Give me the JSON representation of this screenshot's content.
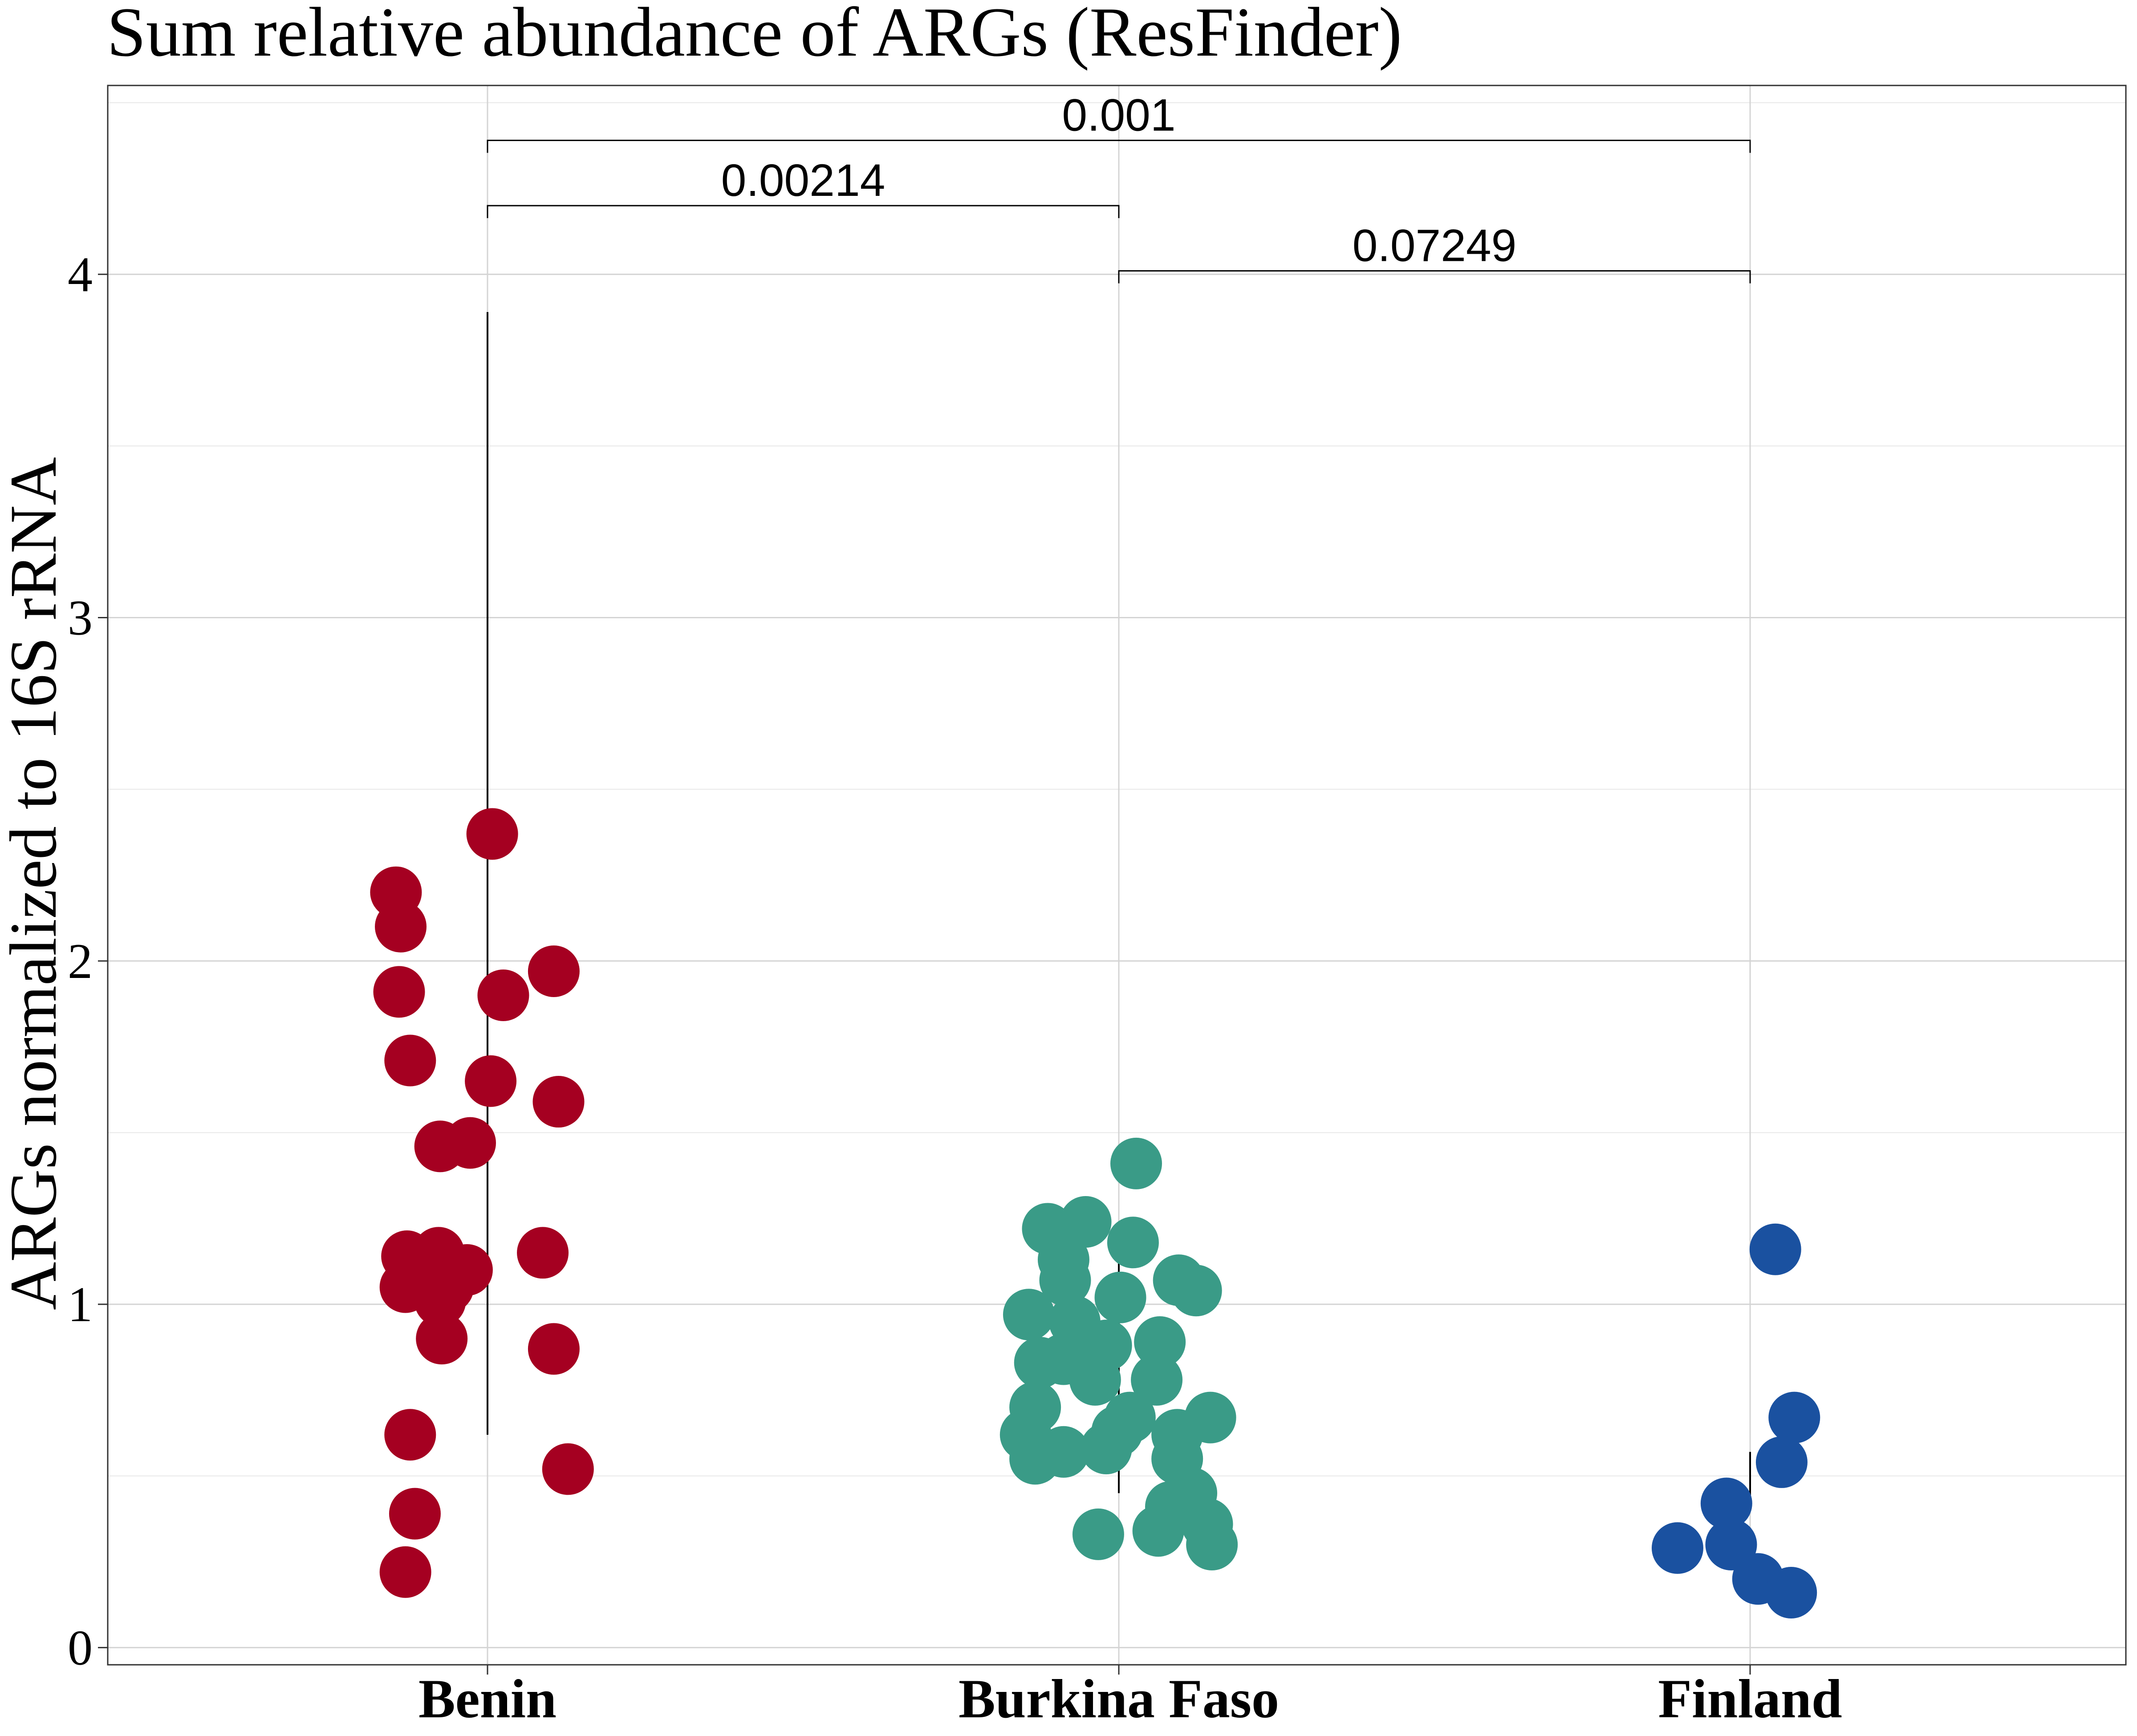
{
  "chart_data": {
    "type": "scatter",
    "title": "Sum relative abundance of ARGs (ResFinder)",
    "xlabel": "",
    "ylabel": "ARGs normalized to 16S rRNA",
    "ylim": [
      -0.05,
      4.55
    ],
    "yticks": [
      0,
      1,
      2,
      3,
      4
    ],
    "grid": true,
    "categories": [
      "Benin",
      "Burkina Faso",
      "Finland"
    ],
    "series": [
      {
        "category": "Benin",
        "color": "#A50021",
        "points": [
          {
            "x": -0.29,
            "y": 2.2
          },
          {
            "x": -0.275,
            "y": 2.1
          },
          {
            "x": -0.28,
            "y": 1.91
          },
          {
            "x": -0.245,
            "y": 1.71
          },
          {
            "x": -0.15,
            "y": 1.46
          },
          {
            "x": -0.055,
            "y": 1.47
          },
          {
            "x": 0.015,
            "y": 2.37
          },
          {
            "x": 0.05,
            "y": 1.9
          },
          {
            "x": 0.01,
            "y": 1.65
          },
          {
            "x": 0.21,
            "y": 1.97
          },
          {
            "x": 0.225,
            "y": 1.59
          },
          {
            "x": -0.255,
            "y": 1.14
          },
          {
            "x": -0.26,
            "y": 1.05
          },
          {
            "x": -0.155,
            "y": 1.15
          },
          {
            "x": -0.15,
            "y": 1.01
          },
          {
            "x": -0.125,
            "y": 1.05
          },
          {
            "x": -0.065,
            "y": 1.1
          },
          {
            "x": -0.145,
            "y": 0.9
          },
          {
            "x": 0.175,
            "y": 1.15
          },
          {
            "x": 0.21,
            "y": 0.87
          },
          {
            "x": -0.245,
            "y": 0.62
          },
          {
            "x": 0.255,
            "y": 0.52
          },
          {
            "x": -0.23,
            "y": 0.39
          },
          {
            "x": -0.26,
            "y": 0.22
          }
        ]
      },
      {
        "category": "Burkina Faso",
        "color": "#3A9B87",
        "points": [
          {
            "x": 0.055,
            "y": 1.41
          },
          {
            "x": -0.225,
            "y": 1.22
          },
          {
            "x": -0.105,
            "y": 1.24
          },
          {
            "x": 0.045,
            "y": 1.18
          },
          {
            "x": -0.175,
            "y": 1.13
          },
          {
            "x": -0.17,
            "y": 1.07
          },
          {
            "x": 0.19,
            "y": 1.07
          },
          {
            "x": 0.245,
            "y": 1.04
          },
          {
            "x": 0.005,
            "y": 1.02
          },
          {
            "x": -0.285,
            "y": 0.97
          },
          {
            "x": -0.14,
            "y": 0.95
          },
          {
            "x": -0.04,
            "y": 0.88
          },
          {
            "x": 0.13,
            "y": 0.89
          },
          {
            "x": -0.25,
            "y": 0.83
          },
          {
            "x": -0.175,
            "y": 0.84
          },
          {
            "x": -0.075,
            "y": 0.78
          },
          {
            "x": 0.12,
            "y": 0.78
          },
          {
            "x": -0.265,
            "y": 0.7
          },
          {
            "x": 0.035,
            "y": 0.67
          },
          {
            "x": 0.29,
            "y": 0.67
          },
          {
            "x": -0.295,
            "y": 0.62
          },
          {
            "x": -0.005,
            "y": 0.63
          },
          {
            "x": 0.185,
            "y": 0.62
          },
          {
            "x": -0.04,
            "y": 0.58
          },
          {
            "x": -0.175,
            "y": 0.57
          },
          {
            "x": -0.265,
            "y": 0.55
          },
          {
            "x": 0.185,
            "y": 0.55
          },
          {
            "x": 0.23,
            "y": 0.45
          },
          {
            "x": 0.165,
            "y": 0.41
          },
          {
            "x": 0.28,
            "y": 0.36
          },
          {
            "x": 0.125,
            "y": 0.34
          },
          {
            "x": -0.065,
            "y": 0.33
          },
          {
            "x": 0.295,
            "y": 0.3
          }
        ]
      },
      {
        "category": "Finland",
        "color": "#1A51A0",
        "points": [
          {
            "x": 0.08,
            "y": 1.16
          },
          {
            "x": 0.14,
            "y": 0.67
          },
          {
            "x": 0.1,
            "y": 0.54
          },
          {
            "x": -0.075,
            "y": 0.42
          },
          {
            "x": -0.06,
            "y": 0.3
          },
          {
            "x": -0.23,
            "y": 0.29
          },
          {
            "x": 0.025,
            "y": 0.2
          },
          {
            "x": 0.13,
            "y": 0.16
          }
        ]
      }
    ],
    "ranges": [
      {
        "category": "Benin",
        "low": 0.62,
        "high": 3.89
      },
      {
        "category": "Burkina Faso",
        "low": 0.45,
        "high": 1.24
      },
      {
        "category": "Finland",
        "low": 0.41,
        "high": 0.57
      }
    ],
    "comparisons": [
      {
        "from": "Benin",
        "to": "Finland",
        "label": "0.001",
        "y": 4.39
      },
      {
        "from": "Benin",
        "to": "Burkina Faso",
        "label": "0.00214",
        "y": 4.2
      },
      {
        "from": "Burkina Faso",
        "to": "Finland",
        "label": "0.07249",
        "y": 4.01
      }
    ]
  }
}
